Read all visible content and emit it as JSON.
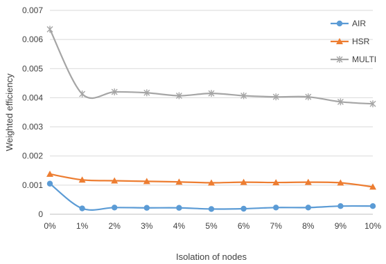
{
  "chart_data": {
    "type": "line",
    "title": "",
    "xlabel": "Isolation of nodes",
    "ylabel": "Weighted efficiency",
    "categories": [
      "0%",
      "1%",
      "2%",
      "3%",
      "4%",
      "5%",
      "6%",
      "7%",
      "8%",
      "9%",
      "10%"
    ],
    "ylim": [
      0,
      0.007
    ],
    "yticks": [
      "0",
      "0.001",
      "0.002",
      "0.003",
      "0.004",
      "0.005",
      "0.006",
      "0.007"
    ],
    "grid": true,
    "legend_position": "right",
    "series": [
      {
        "name": "AIR",
        "color": "#5b9bd5",
        "marker": "circle",
        "values": [
          0.00105,
          0.0002,
          0.00023,
          0.00022,
          0.00022,
          0.00018,
          0.00019,
          0.00023,
          0.00023,
          0.00028,
          0.00028
        ]
      },
      {
        "name": "HSR",
        "color": "#ed7d31",
        "marker": "triangle",
        "values": [
          0.00138,
          0.00118,
          0.00115,
          0.00113,
          0.00111,
          0.00108,
          0.0011,
          0.00109,
          0.0011,
          0.00108,
          0.00094
        ]
      },
      {
        "name": "MULTI",
        "color": "#a5a5a5",
        "marker": "star",
        "values": [
          0.00635,
          0.00413,
          0.0042,
          0.00417,
          0.00407,
          0.00415,
          0.00407,
          0.00403,
          0.00403,
          0.00386,
          0.00379
        ]
      }
    ]
  }
}
